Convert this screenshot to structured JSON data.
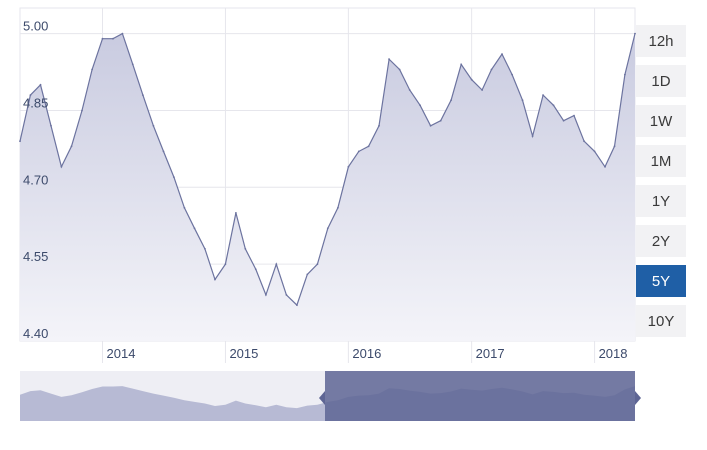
{
  "range_buttons": [
    {
      "label": "12h",
      "active": false
    },
    {
      "label": "1D",
      "active": false
    },
    {
      "label": "1W",
      "active": false
    },
    {
      "label": "1M",
      "active": false
    },
    {
      "label": "1Y",
      "active": false
    },
    {
      "label": "2Y",
      "active": false
    },
    {
      "label": "5Y",
      "active": true
    },
    {
      "label": "10Y",
      "active": false
    }
  ],
  "colors": {
    "line": "#6c739f",
    "area_top": "#c9cbe0",
    "area_bottom": "#f4f4f9",
    "active_button": "#1f5fa6",
    "navigator_selected": "#5e6594",
    "navigator_unselected": "#b7bad4"
  },
  "chart_data": {
    "type": "area",
    "ylim": [
      4.4,
      5.05
    ],
    "yticks": [
      4.4,
      4.55,
      4.7,
      4.85,
      5.0
    ],
    "ytick_labels": [
      "4.40",
      "4.55",
      "4.70",
      "4.85",
      "5.00"
    ],
    "xlim": [
      "2013-05-01",
      "2018-05-01"
    ],
    "xticks": [
      "2014-01-01",
      "2015-01-01",
      "2016-01-01",
      "2017-01-01",
      "2018-01-01"
    ],
    "xtick_labels": [
      "2014",
      "2015",
      "2016",
      "2017",
      "2018"
    ],
    "grid": true,
    "x": [
      "2013-05-01",
      "2013-06-01",
      "2013-07-01",
      "2013-08-01",
      "2013-09-01",
      "2013-10-01",
      "2013-11-01",
      "2013-12-01",
      "2014-01-01",
      "2014-02-01",
      "2014-03-01",
      "2014-04-01",
      "2014-05-01",
      "2014-06-01",
      "2014-07-01",
      "2014-08-01",
      "2014-09-01",
      "2014-10-01",
      "2014-11-01",
      "2014-12-01",
      "2015-01-01",
      "2015-02-01",
      "2015-03-01",
      "2015-04-01",
      "2015-05-01",
      "2015-06-01",
      "2015-07-01",
      "2015-08-01",
      "2015-09-01",
      "2015-10-01",
      "2015-11-01",
      "2015-12-01",
      "2016-01-01",
      "2016-02-01",
      "2016-03-01",
      "2016-04-01",
      "2016-05-01",
      "2016-06-01",
      "2016-07-01",
      "2016-08-01",
      "2016-09-01",
      "2016-10-01",
      "2016-11-01",
      "2016-12-01",
      "2017-01-01",
      "2017-02-01",
      "2017-03-01",
      "2017-04-01",
      "2017-05-01",
      "2017-06-01",
      "2017-07-01",
      "2017-08-01",
      "2017-09-01",
      "2017-10-01",
      "2017-11-01",
      "2017-12-01",
      "2018-01-01",
      "2018-02-01",
      "2018-03-01",
      "2018-04-01",
      "2018-05-01"
    ],
    "values": [
      4.79,
      4.88,
      4.9,
      4.82,
      4.74,
      4.78,
      4.85,
      4.93,
      4.99,
      4.99,
      5.0,
      4.94,
      4.88,
      4.82,
      4.77,
      4.72,
      4.66,
      4.62,
      4.58,
      4.52,
      4.55,
      4.65,
      4.58,
      4.54,
      4.49,
      4.55,
      4.49,
      4.47,
      4.53,
      4.55,
      4.62,
      4.66,
      4.74,
      4.77,
      4.78,
      4.82,
      4.95,
      4.93,
      4.89,
      4.86,
      4.82,
      4.83,
      4.87,
      4.94,
      4.91,
      4.89,
      4.93,
      4.96,
      4.92,
      4.87,
      4.8,
      4.88,
      4.86,
      4.83,
      4.84,
      4.79,
      4.77,
      4.74,
      4.78,
      4.92,
      5.0
    ]
  }
}
